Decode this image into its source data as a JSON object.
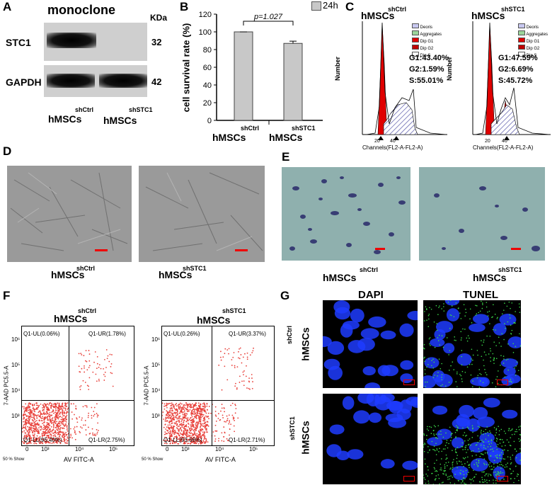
{
  "panel_letters": {
    "a": "A",
    "b": "B",
    "c": "C",
    "d": "D",
    "e": "E",
    "f": "F",
    "g": "G"
  },
  "panel_a": {
    "title": "monoclone",
    "kda": "KDa",
    "rows": [
      {
        "label": "STC1",
        "kda": "32"
      },
      {
        "label": "GAPDH",
        "kda": "42"
      }
    ],
    "groups": [
      {
        "sup": "shCtrl",
        "name": "hMSCs"
      },
      {
        "sup": "shSTC1",
        "name": "hMSCs"
      }
    ]
  },
  "panel_b": {
    "legend": "24h",
    "ylabel": "cell survival rate (%)",
    "pvalue": "p=1.027",
    "groups": [
      {
        "sup": "shCtrl",
        "name": "hMSCs"
      },
      {
        "sup": "shSTC1",
        "name": "hMSCs"
      }
    ],
    "colors": {
      "bar": "#c8c8c8"
    }
  },
  "chart_data": {
    "type": "bar",
    "categories": [
      "shCtrl hMSCs",
      "shSTC1 hMSCs"
    ],
    "values": [
      100,
      87
    ],
    "errors": [
      0,
      2.5
    ],
    "series": [
      {
        "name": "24h",
        "values": [
          100,
          87
        ]
      }
    ],
    "ylabel": "cell survival rate (%)",
    "ylim": [
      0,
      120
    ],
    "yticks": [
      "0",
      "20",
      "40",
      "60",
      "80",
      "100",
      "120"
    ],
    "annotation": "p=1.027",
    "legend_position": "top-right"
  },
  "panel_c": {
    "xlabel": "Channels(FL2-A-FL2-A)",
    "ylabel": "Number",
    "legend": [
      "Deoris",
      "Aggregates",
      "Dip G1",
      "Dip G2",
      "Dip S"
    ],
    "legend_colors": [
      "#c8c8f0",
      "#9ad49a",
      "#e00000",
      "#c00000",
      "#ffffff"
    ],
    "plots": [
      {
        "sup": "shCtrl",
        "name": "hMSCs",
        "stats": [
          "G1:43.40%",
          "G2:1.59%",
          "S:55.01%"
        ],
        "xticks": [
          "20",
          "40"
        ]
      },
      {
        "sup": "shSTC1",
        "name": "hMSCs",
        "stats": [
          "G1:47.59%",
          "G2:6.69%",
          "S:45.72%"
        ],
        "xticks": [
          "20",
          "40"
        ]
      }
    ]
  },
  "panel_d": {
    "groups": [
      {
        "sup": "shCtrl",
        "name": "hMSCs"
      },
      {
        "sup": "shSTC1",
        "name": "hMSCs"
      }
    ]
  },
  "panel_e": {
    "groups": [
      {
        "sup": "shCtrl",
        "name": "hMSCs"
      },
      {
        "sup": "shSTC1",
        "name": "hMSCs"
      }
    ]
  },
  "panel_f": {
    "plots": [
      {
        "sup": "shCtrl",
        "name": "hMSCs",
        "ul": "Q1-UL(0.06%)",
        "ur": "Q1-UR(1.78%)",
        "ll": "Q1-LL(95.40%)",
        "lr": "Q1-LR(2.75%)"
      },
      {
        "sup": "shSTC1",
        "name": "hMSCs",
        "ul": "Q1-UL(0.26%)",
        "ur": "Q1-UR(3.37%)",
        "ll": "Q1-LL(93.66%)",
        "lr": "Q1-LR(2.71%)"
      }
    ],
    "xlabel": "AV FITC-A",
    "ylabel": "7-AAD PC5.5-A",
    "footnote": "50 % Show",
    "xticks": [
      "0",
      "10³",
      "10⁴",
      "10⁵"
    ],
    "yticks": [
      "10⁶",
      "10⁵",
      "10⁴",
      "10³"
    ],
    "colors": {
      "dots": "#e8403a"
    }
  },
  "panel_g": {
    "columns": [
      "DAPI",
      "TUNEL"
    ],
    "rows": [
      {
        "sup": "shCtrl",
        "name": "hMSCs"
      },
      {
        "sup": "shSTC1",
        "name": "hMSCs"
      }
    ]
  }
}
